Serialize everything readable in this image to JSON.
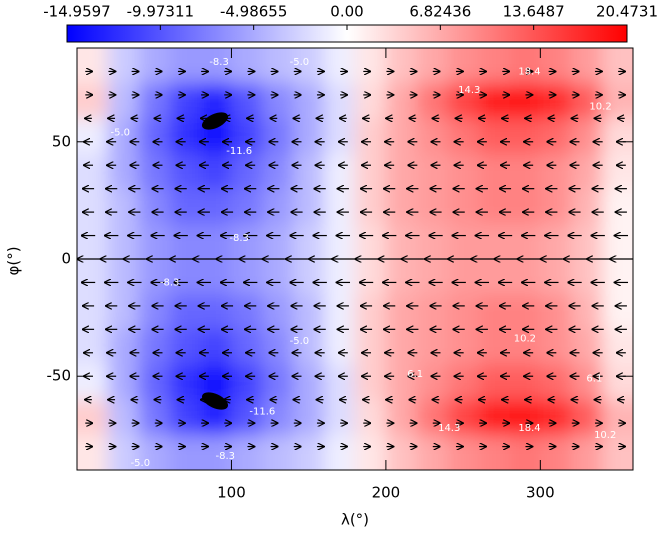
{
  "chart_data": {
    "type": "heatmap",
    "xlabel": "λ(°)",
    "ylabel": "φ(°)",
    "xlim": [
      0,
      360
    ],
    "ylim": [
      -90,
      90
    ],
    "xticks": [
      100,
      200,
      300
    ],
    "yticks": [
      -50,
      0,
      50
    ],
    "x": [
      10,
      30,
      50,
      70,
      90,
      110,
      130,
      150,
      170,
      190,
      210,
      230,
      250,
      270,
      290,
      310,
      330,
      350
    ],
    "y": [
      82.5,
      67.5,
      52.5,
      37.5,
      22.5,
      7.5,
      -7.5,
      -22.5,
      -37.5,
      -52.5,
      -67.5,
      -82.5
    ],
    "z": [
      [
        2,
        -3,
        -5,
        -6,
        -6,
        -5,
        -4,
        -3,
        -1,
        2,
        5,
        7,
        9,
        10,
        11,
        10,
        8,
        5
      ],
      [
        4,
        -4,
        -8,
        -11,
        -13,
        -10,
        -7,
        -5,
        -2,
        3,
        7,
        11,
        15,
        18,
        19,
        17,
        13,
        6
      ],
      [
        -1,
        -5,
        -9,
        -12,
        -14,
        -11,
        -8,
        -5,
        -2,
        4,
        7,
        9,
        11,
        13,
        13,
        12,
        9,
        3
      ],
      [
        -2,
        -5,
        -8,
        -10,
        -11,
        -9,
        -7,
        -4,
        -1,
        4,
        7,
        8,
        9,
        10,
        10,
        9,
        7,
        2
      ],
      [
        -2,
        -4,
        -7,
        -9,
        -9,
        -8,
        -6,
        -4,
        -1,
        4,
        7,
        8,
        9,
        10,
        10,
        9,
        6,
        1
      ],
      [
        -2,
        -4,
        -6,
        -7,
        -7,
        -6,
        -5,
        -3,
        -1,
        3,
        6,
        7,
        8,
        8,
        8,
        7,
        5,
        1
      ],
      [
        -2,
        -4,
        -6,
        -7,
        -7,
        -6,
        -5,
        -3,
        -1,
        3,
        6,
        7,
        8,
        8,
        8,
        7,
        5,
        1
      ],
      [
        -2,
        -4,
        -7,
        -9,
        -9,
        -8,
        -6,
        -4,
        -1,
        4,
        7,
        8,
        9,
        10,
        10,
        9,
        6,
        1
      ],
      [
        -2,
        -5,
        -8,
        -10,
        -11,
        -9,
        -7,
        -4,
        -1,
        4,
        7,
        8,
        9,
        10,
        10,
        9,
        7,
        2
      ],
      [
        -1,
        -5,
        -9,
        -12,
        -14,
        -11,
        -8,
        -5,
        -2,
        4,
        7,
        9,
        11,
        13,
        13,
        12,
        9,
        3
      ],
      [
        4,
        -4,
        -8,
        -11,
        -13,
        -10,
        -7,
        -5,
        -2,
        3,
        7,
        11,
        15,
        18,
        19,
        17,
        13,
        6
      ],
      [
        2,
        -3,
        -5,
        -6,
        -6,
        -5,
        -4,
        -3,
        -1,
        2,
        5,
        7,
        9,
        10,
        11,
        10,
        8,
        5
      ]
    ],
    "zlim": [
      -14.9597,
      20.4731
    ],
    "colorbar_ticks": [
      -14.9597,
      -9.97311,
      -4.98655,
      {
        "value": 0,
        "label": "0.00"
      },
      6.82436,
      13.6487,
      20.4731
    ],
    "colormap": {
      "low": "#0000ff",
      "mid": "#ffffff",
      "high": "#ff0000"
    },
    "contour_labels": [
      {
        "text": "-8.3",
        "x": 92,
        "y": 84
      },
      {
        "text": "-5.0",
        "x": 144,
        "y": 84
      },
      {
        "text": "14.3",
        "x": 254,
        "y": 72
      },
      {
        "text": "18.4",
        "x": 293,
        "y": 80
      },
      {
        "text": "10.2",
        "x": 339,
        "y": 65
      },
      {
        "text": "-5.0",
        "x": 28,
        "y": 54
      },
      {
        "text": "-11.6",
        "x": 105,
        "y": 46
      },
      {
        "text": "-8.3",
        "x": 105,
        "y": 9
      },
      {
        "text": "-8.3",
        "x": 60,
        "y": -10
      },
      {
        "text": "-5.0",
        "x": 144,
        "y": -35
      },
      {
        "text": "6.1",
        "x": 219,
        "y": -49
      },
      {
        "text": "6.1",
        "x": 335,
        "y": -51
      },
      {
        "text": "10.2",
        "x": 290,
        "y": -34
      },
      {
        "text": "-11.6",
        "x": 120,
        "y": -65
      },
      {
        "text": "-8.3",
        "x": 96,
        "y": -84
      },
      {
        "text": "-5.0",
        "x": 41,
        "y": -87
      },
      {
        "text": "14.3",
        "x": 241,
        "y": -72
      },
      {
        "text": "18.4",
        "x": 293,
        "y": -72
      },
      {
        "text": "10.2",
        "x": 342,
        "y": -75
      }
    ],
    "wind": {
      "lat": [
        80,
        70,
        60,
        50,
        40,
        30,
        20,
        10,
        0,
        -10,
        -20,
        -30,
        -40,
        -50,
        -60,
        -70,
        -80
      ],
      "u": [
        0.3,
        0.3,
        -0.3,
        -0.4,
        -0.4,
        -0.5,
        -0.5,
        -0.6,
        -1.0,
        -0.6,
        -0.5,
        -0.5,
        -0.4,
        -0.4,
        -0.3,
        0.3,
        0.3
      ],
      "lon_step": 15
    }
  }
}
